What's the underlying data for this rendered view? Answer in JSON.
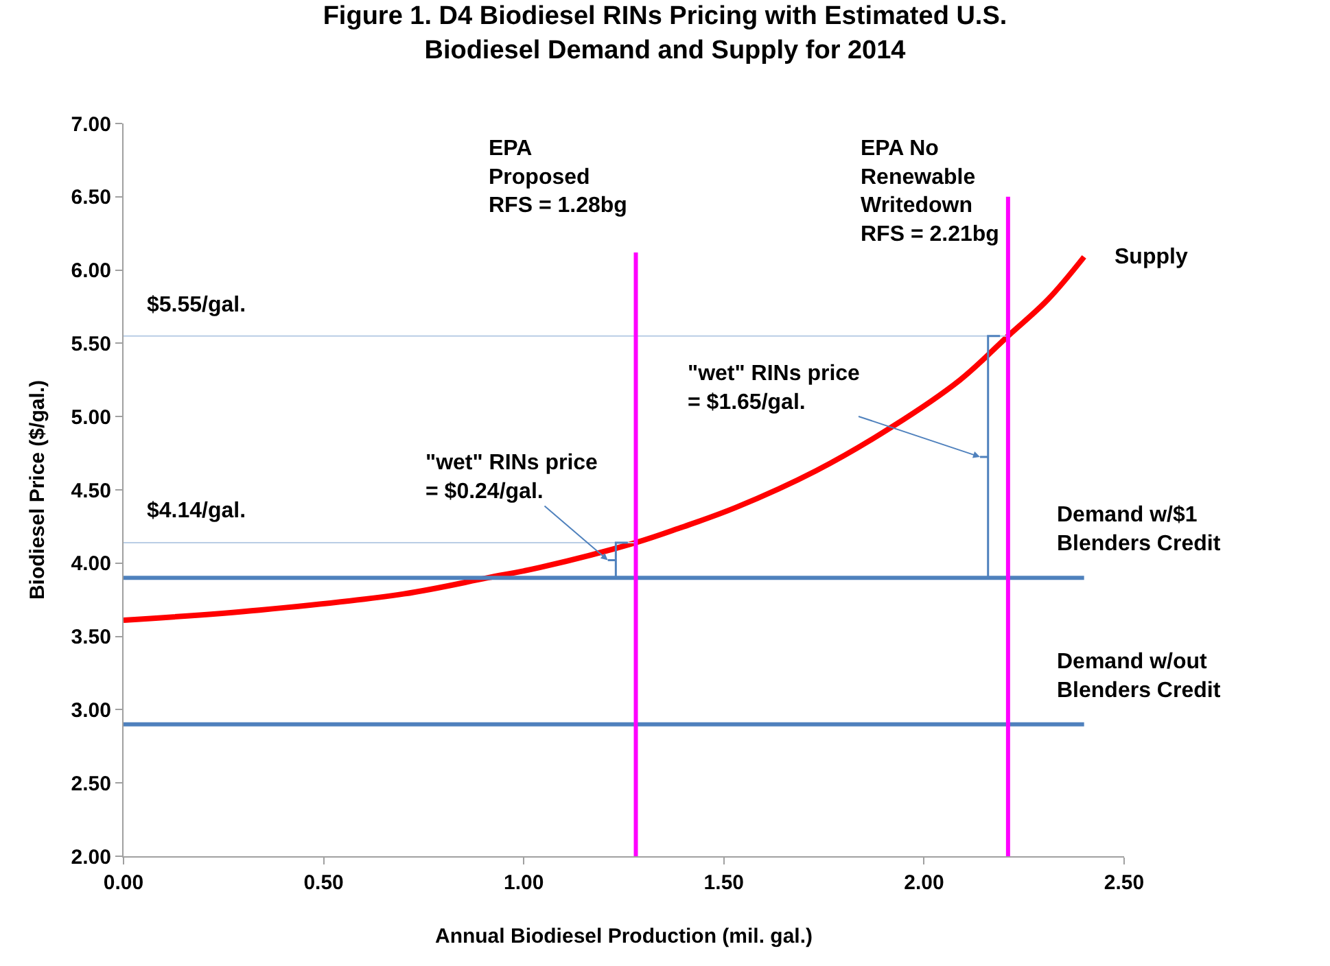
{
  "chart_data": {
    "type": "line",
    "title": "Figure 1. D4 Biodiesel RINs Pricing with Estimated U.S.\nBiodiesel Demand and Supply for 2014",
    "xlabel": "Annual Biodiesel Production (mil. gal.)",
    "ylabel": "Biodiesel Price ($/gal.)",
    "xlim": [
      0,
      2.5
    ],
    "ylim": [
      2,
      7
    ],
    "xticks": [
      {
        "value": 0,
        "label": "0.00"
      },
      {
        "value": 0.5,
        "label": "0.50"
      },
      {
        "value": 1,
        "label": "1.00"
      },
      {
        "value": 1.5,
        "label": "1.50"
      },
      {
        "value": 2,
        "label": "2.00"
      },
      {
        "value": 2.5,
        "label": "2.50"
      }
    ],
    "yticks": [
      {
        "value": 2,
        "label": "2.00"
      },
      {
        "value": 2.5,
        "label": "2.50"
      },
      {
        "value": 3,
        "label": "3.00"
      },
      {
        "value": 3.5,
        "label": "3.50"
      },
      {
        "value": 4,
        "label": "4.00"
      },
      {
        "value": 4.5,
        "label": "4.50"
      },
      {
        "value": 5,
        "label": "5.00"
      },
      {
        "value": 5.5,
        "label": "5.50"
      },
      {
        "value": 6,
        "label": "6.00"
      },
      {
        "value": 6.5,
        "label": "6.50"
      },
      {
        "value": 7,
        "label": "7.00"
      }
    ],
    "grid": false,
    "legend": false,
    "marker": "none",
    "line_style": "solid",
    "series": [
      {
        "name": "Supply",
        "color": "#ff0000",
        "x": [
          0,
          0.34,
          0.7,
          0.91,
          1.04,
          1.28,
          1.39,
          1.53,
          1.73,
          1.92,
          2.09,
          2.21,
          2.31,
          2.4
        ],
        "values": [
          3.61,
          3.68,
          3.79,
          3.9,
          3.97,
          4.14,
          4.24,
          4.38,
          4.63,
          4.93,
          5.25,
          5.55,
          5.8,
          6.09
        ]
      },
      {
        "name": "Demand w/$1\nBlenders Credit",
        "color": "#4f81bd",
        "x": [
          0,
          2.4
        ],
        "values": [
          3.9,
          3.9
        ]
      },
      {
        "name": "Demand w/out\nBlenders Credit",
        "color": "#4f81bd",
        "x": [
          0,
          2.4
        ],
        "values": [
          2.9,
          2.9
        ]
      },
      {
        "name": "$4.14/gal.",
        "color": "#b9cde5",
        "x": [
          0,
          1.28
        ],
        "values": [
          4.14,
          4.14
        ]
      },
      {
        "name": "$5.55/gal.",
        "color": "#b9cde5",
        "x": [
          0,
          2.21
        ],
        "values": [
          5.55,
          5.55
        ]
      },
      {
        "name": "EPA\nProposed\nRFS = 1.28bg",
        "color": "#ff00ff",
        "x": [
          1.28,
          1.28
        ],
        "values": [
          2,
          6.12
        ]
      },
      {
        "name": "EPA No\nRenewable\nWritedown\nRFS = 2.21bg",
        "color": "#ff00ff",
        "x": [
          2.21,
          2.21
        ],
        "values": [
          2,
          6.5
        ]
      }
    ],
    "annotations": [
      "\"wet\" RINs price\n= $0.24/gal.",
      "\"wet\" RINs price\n= $1.65/gal."
    ]
  }
}
